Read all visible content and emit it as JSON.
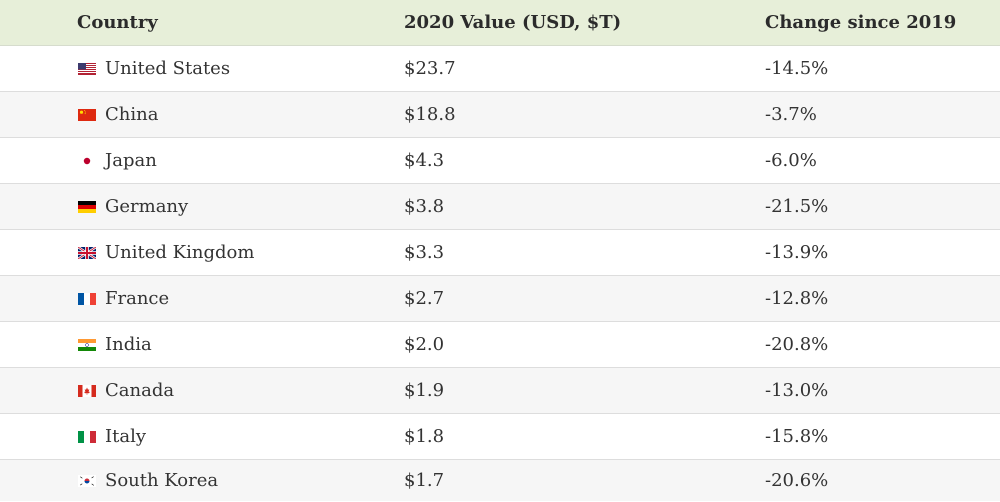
{
  "chart_data": {
    "type": "table",
    "columns": [
      "Country",
      "2020 Value (USD, $T)",
      "Change since 2019"
    ],
    "rows": [
      {
        "country": "United States",
        "flag": "us-flag-icon",
        "value": "$23.7",
        "change": "-14.5%"
      },
      {
        "country": "China",
        "flag": "cn-flag-icon",
        "value": "$18.8",
        "change": "-3.7%"
      },
      {
        "country": "Japan",
        "flag": "jp-flag-icon",
        "value": "$4.3",
        "change": "-6.0%"
      },
      {
        "country": "Germany",
        "flag": "de-flag-icon",
        "value": "$3.8",
        "change": "-21.5%"
      },
      {
        "country": "United Kingdom",
        "flag": "gb-flag-icon",
        "value": "$3.3",
        "change": "-13.9%"
      },
      {
        "country": "France",
        "flag": "fr-flag-icon",
        "value": "$2.7",
        "change": "-12.8%"
      },
      {
        "country": "India",
        "flag": "in-flag-icon",
        "value": "$2.0",
        "change": "-20.8%"
      },
      {
        "country": "Canada",
        "flag": "ca-flag-icon",
        "value": "$1.9",
        "change": "-13.0%"
      },
      {
        "country": "Italy",
        "flag": "it-flag-icon",
        "value": "$1.8",
        "change": "-15.8%"
      },
      {
        "country": "South Korea",
        "flag": "kr-flag-icon",
        "value": "$1.7",
        "change": "-20.6%"
      }
    ]
  },
  "colors": {
    "header_bg": "#e7efd9",
    "row_alt_bg": "#f6f6f6",
    "row_bg": "#ffffff",
    "border": "#dddddd",
    "text": "#333333"
  }
}
